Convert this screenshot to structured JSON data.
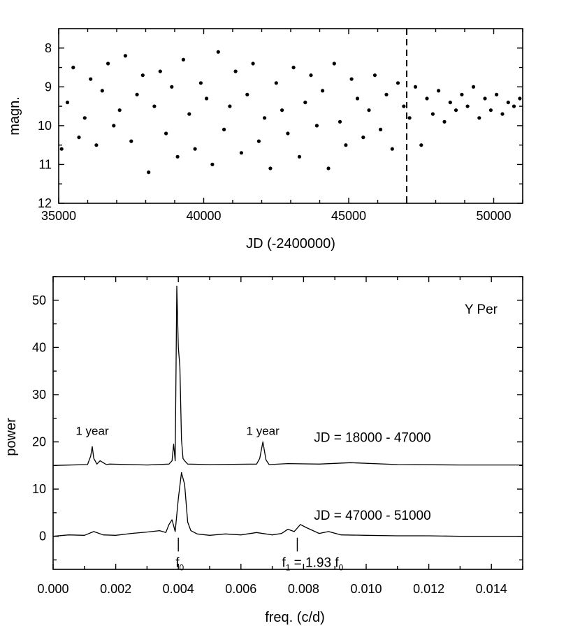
{
  "chart_data": [
    {
      "type": "scatter",
      "xlabel": "JD (-2400000)",
      "ylabel": "magn.",
      "xlim": [
        35000,
        51000
      ],
      "ylim": [
        12,
        7.5
      ],
      "y_inverted": true,
      "x_ticks": [
        "35000",
        "40000",
        "45000",
        "50000"
      ],
      "x_tick_values": [
        35000,
        40000,
        45000,
        50000
      ],
      "y_ticks": [
        "8",
        "9",
        "10",
        "11",
        "12"
      ],
      "y_tick_values": [
        8,
        9,
        10,
        11,
        12
      ],
      "marker_line": {
        "x": 47000,
        "style": "dashed"
      },
      "series": [
        {
          "points_x": [
            35100,
            35300,
            35500,
            35700,
            35900,
            36100,
            36300,
            36500,
            36700,
            36900,
            37100,
            37300,
            37500,
            37700,
            37900,
            38100,
            38300,
            38500,
            38700,
            38900,
            39100,
            39300,
            39500,
            39700,
            39900,
            40100,
            40300,
            40500,
            40700,
            40900,
            41100,
            41300,
            41500,
            41700,
            41900,
            42100,
            42300,
            42500,
            42700,
            42900,
            43100,
            43300,
            43500,
            43700,
            43900,
            44100,
            44300,
            44500,
            44700,
            44900,
            45100,
            45300,
            45500,
            45700,
            45900,
            46100,
            46300,
            46500,
            46700,
            46900,
            47100,
            47300,
            47500,
            47700,
            47900,
            48100,
            48300,
            48500,
            48700,
            48900,
            49100,
            49300,
            49500,
            49700,
            49900,
            50100,
            50300,
            50500,
            50700,
            50900
          ],
          "points_y": [
            10.6,
            9.4,
            8.5,
            10.3,
            9.8,
            8.8,
            10.5,
            9.1,
            8.4,
            10.0,
            9.6,
            8.2,
            10.4,
            9.2,
            8.7,
            11.2,
            9.5,
            8.6,
            10.2,
            9.0,
            10.8,
            8.3,
            9.7,
            10.6,
            8.9,
            9.3,
            11.0,
            8.1,
            10.1,
            9.5,
            8.6,
            10.7,
            9.2,
            8.4,
            10.4,
            9.8,
            11.1,
            8.9,
            9.6,
            10.2,
            8.5,
            10.8,
            9.4,
            8.7,
            10.0,
            9.1,
            11.1,
            8.4,
            9.9,
            10.5,
            8.8,
            9.3,
            10.3,
            9.6,
            8.7,
            10.1,
            9.2,
            10.6,
            8.9,
            9.5,
            9.8,
            9.0,
            10.5,
            9.3,
            9.7,
            9.1,
            9.9,
            9.4,
            9.6,
            9.2,
            9.5,
            9.0,
            9.8,
            9.3,
            9.6,
            9.2,
            9.7,
            9.4,
            9.5,
            9.3
          ]
        }
      ]
    },
    {
      "type": "line",
      "title": "Y Per",
      "xlabel": "freq. (c/d)",
      "ylabel": "power",
      "xlim": [
        0.0,
        0.015
      ],
      "ylim": [
        -7,
        55
      ],
      "x_ticks": [
        "0.000",
        "0.002",
        "0.004",
        "0.006",
        "0.008",
        "0.010",
        "0.012",
        "0.014"
      ],
      "x_tick_values": [
        0.0,
        0.002,
        0.004,
        0.006,
        0.008,
        0.01,
        0.012,
        0.014
      ],
      "y_ticks": [
        "0",
        "10",
        "20",
        "30",
        "40",
        "50"
      ],
      "y_tick_values": [
        0,
        10,
        20,
        30,
        40,
        50
      ],
      "series": [
        {
          "name": "JD = 18000 - 47000",
          "baseline": 15,
          "x": [
            0.0,
            0.0011,
            0.0012,
            0.00125,
            0.0013,
            0.0014,
            0.0015,
            0.0016,
            0.0017,
            0.0018,
            0.003,
            0.0037,
            0.0038,
            0.00385,
            0.0039,
            0.00395,
            0.004,
            0.00405,
            0.0041,
            0.00415,
            0.0042,
            0.0043,
            0.005,
            0.0065,
            0.0066,
            0.0067,
            0.0068,
            0.0069,
            0.0075,
            0.0085,
            0.0095,
            0.011,
            0.013,
            0.015
          ],
          "y": [
            15.0,
            15.2,
            17.0,
            19.0,
            16.5,
            15.3,
            16.0,
            15.6,
            15.2,
            15.3,
            15.1,
            15.3,
            16.0,
            19.5,
            16.0,
            53.0,
            40.0,
            36.0,
            20.5,
            16.5,
            16.0,
            15.3,
            15.2,
            15.3,
            16.5,
            20.0,
            16.2,
            15.2,
            15.4,
            15.3,
            15.6,
            15.2,
            15.1,
            15.1
          ]
        },
        {
          "name": "JD = 47000 - 51000",
          "baseline": 0,
          "x": [
            0.0,
            0.0005,
            0.001,
            0.0013,
            0.0016,
            0.002,
            0.0025,
            0.003,
            0.0034,
            0.0036,
            0.0037,
            0.0038,
            0.0039,
            0.004,
            0.0041,
            0.0042,
            0.0043,
            0.0044,
            0.0046,
            0.005,
            0.0055,
            0.006,
            0.0065,
            0.007,
            0.0073,
            0.0075,
            0.0077,
            0.0079,
            0.0081,
            0.0085,
            0.0088,
            0.0092,
            0.01,
            0.011,
            0.012,
            0.013,
            0.014,
            0.015
          ],
          "y": [
            0.0,
            0.3,
            0.2,
            1.0,
            0.3,
            0.2,
            0.6,
            0.9,
            1.2,
            0.8,
            2.5,
            3.5,
            1.0,
            8.0,
            13.5,
            11.0,
            3.0,
            1.2,
            0.5,
            0.2,
            0.5,
            0.3,
            0.8,
            0.3,
            0.6,
            1.5,
            1.0,
            2.5,
            1.8,
            0.6,
            1.0,
            0.3,
            0.2,
            0.1,
            0.1,
            0.0,
            0.0,
            0.0
          ]
        }
      ],
      "annotations": [
        {
          "text": "1 year",
          "x": 0.00125,
          "y": 21.5
        },
        {
          "text": "1 year",
          "x": 0.0067,
          "y": 21.5
        },
        {
          "text": "JD = 18000 - 47000",
          "x": 0.0102,
          "y": 20
        },
        {
          "text": "JD = 47000 - 51000",
          "x": 0.0102,
          "y": 3.5
        }
      ],
      "markers": [
        {
          "label": "f",
          "sub": "0",
          "x": 0.004
        },
        {
          "label": "f",
          "sub": "1",
          "suffix": " = 1.93 f",
          "suffix_sub": "0",
          "x": 0.0078
        }
      ]
    }
  ]
}
